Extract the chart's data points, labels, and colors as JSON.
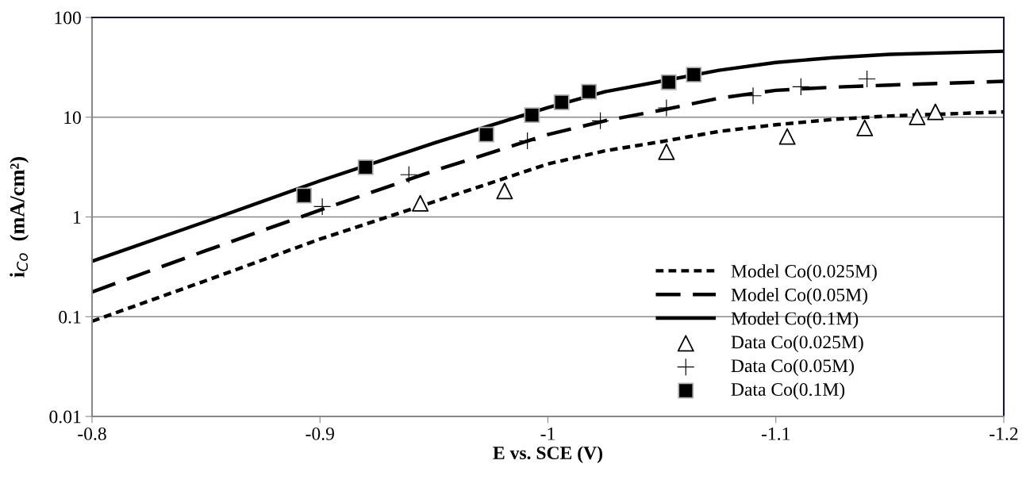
{
  "chart_data": {
    "type": "line",
    "xlabel": "E vs. SCE (V)",
    "ylabel": "i$_{Co}$  (mA/cm²)",
    "log": "y",
    "grid": "y",
    "legend": "bottom right",
    "xlim": [
      -0.8,
      -1.2
    ],
    "xticks": [
      -0.8,
      -0.9,
      -1,
      -1.1,
      -1.2
    ],
    "ylim": [
      0.01,
      100
    ],
    "yticks": [
      0.01,
      0.1,
      1,
      10,
      100
    ],
    "series": [
      {
        "name": "Model Co(0.025M)",
        "line_style": "dotted",
        "color": "#000000",
        "x": [
          -0.8,
          -0.85,
          -0.9,
          -0.95,
          -1.0,
          -1.025,
          -1.05,
          -1.075,
          -1.1,
          -1.125,
          -1.15,
          -1.2
        ],
        "values": [
          0.09,
          0.23,
          0.6,
          1.42,
          3.4,
          4.6,
          5.7,
          7.2,
          8.4,
          9.5,
          10.3,
          11.3
        ]
      },
      {
        "name": "Model Co(0.05M)",
        "line_style": "dashed",
        "color": "#000000",
        "x": [
          -0.8,
          -0.85,
          -0.9,
          -0.95,
          -1.0,
          -1.025,
          -1.05,
          -1.075,
          -1.1,
          -1.125,
          -1.15,
          -1.2
        ],
        "values": [
          0.177,
          0.46,
          1.17,
          2.9,
          6.7,
          9.2,
          11.8,
          15.5,
          18.6,
          20,
          21,
          22.9
        ]
      },
      {
        "name": "Model Co(0.1M)",
        "line_style": "solid",
        "color": "#000000",
        "x": [
          -0.8,
          -0.85,
          -0.9,
          -0.95,
          -1.0,
          -1.025,
          -1.05,
          -1.075,
          -1.1,
          -1.125,
          -1.15,
          -1.2
        ],
        "values": [
          0.36,
          0.9,
          2.3,
          5.5,
          12.5,
          18,
          23,
          29.5,
          35.4,
          39.5,
          42.7,
          45.8
        ]
      },
      {
        "name": "Data Co(0.025M)",
        "type": "scatter",
        "marker": "triangle",
        "color": "#000000",
        "x": [
          -0.944,
          -0.981,
          -1.052,
          -1.105,
          -1.139,
          -1.162,
          -1.17
        ],
        "values": [
          1.37,
          1.82,
          4.5,
          6.4,
          7.8,
          10.1,
          11.3
        ]
      },
      {
        "name": "Data Co(0.05M)",
        "type": "scatter",
        "marker": "cross",
        "color": "#000000",
        "x": [
          -0.901,
          -0.939,
          -0.991,
          -1.023,
          -1.052,
          -1.09,
          -1.111,
          -1.14
        ],
        "values": [
          1.27,
          2.65,
          5.8,
          9.2,
          12.4,
          16.4,
          20.2,
          24.2
        ]
      },
      {
        "name": "Data Co(0.1M)",
        "type": "scatter",
        "marker": "square",
        "color": "#000000",
        "x": [
          -0.893,
          -0.92,
          -0.973,
          -0.993,
          -1.006,
          -1.018,
          -1.053,
          -1.064
        ],
        "values": [
          1.64,
          3.15,
          6.7,
          10.5,
          14.1,
          18,
          22.4,
          26.7
        ]
      }
    ]
  }
}
